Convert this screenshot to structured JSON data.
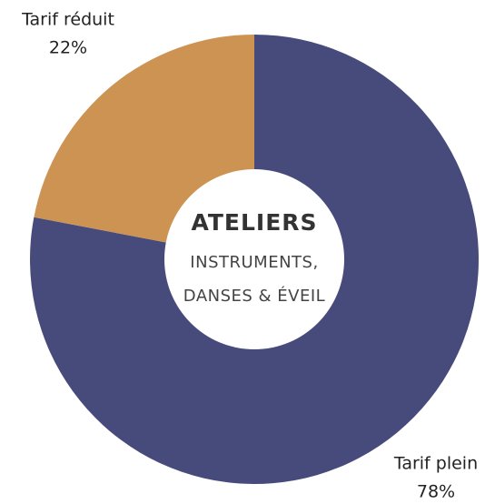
{
  "chart_data": {
    "type": "donut",
    "categories": [
      "Tarif plein",
      "Tarif réduit"
    ],
    "values": [
      78,
      22
    ],
    "value_labels": [
      "78%",
      "22%"
    ],
    "colors": [
      "#474b7c",
      "#cc9352"
    ],
    "center_title": "ATELIERS",
    "center_lines": [
      "INSTRUMENTS,",
      "DANSES & ÉVEIL"
    ]
  }
}
